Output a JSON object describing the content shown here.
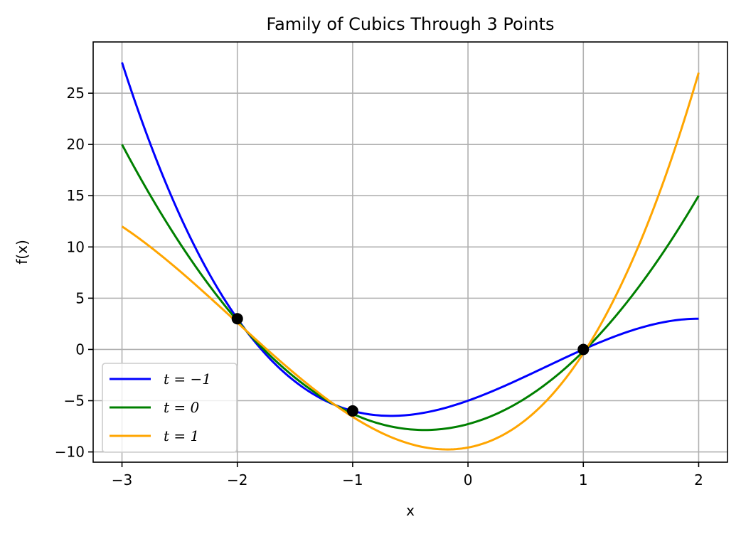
{
  "chart_data": {
    "type": "line",
    "title": "Family of Cubics Through 3 Points",
    "xlabel": "x",
    "ylabel": "f(x)",
    "xlim": [
      -3.25,
      2.25
    ],
    "ylim": [
      -11,
      30
    ],
    "x_ticks": [
      -3,
      -2,
      -1,
      0,
      1,
      2
    ],
    "x_tick_labels": [
      "−3",
      "−2",
      "−1",
      "0",
      "1",
      "2"
    ],
    "y_ticks": [
      -10,
      -5,
      0,
      5,
      10,
      15,
      20,
      25
    ],
    "y_tick_labels": [
      "−10",
      "−5",
      "0",
      "5",
      "10",
      "15",
      "20",
      "25"
    ],
    "grid": true,
    "legend_position": "lower-left",
    "series": [
      {
        "name": "t = −1",
        "color": "#0000ff",
        "x": [
          -3,
          -2.5,
          -2,
          -1.5,
          -1,
          -0.5,
          0,
          0.5,
          1,
          1.5,
          2
        ],
        "y": [
          28,
          13.125,
          3,
          -3.125,
          -6,
          -6.375,
          -5,
          -2.625,
          0,
          2.125,
          3
        ]
      },
      {
        "name": "t = 0",
        "color": "#008000",
        "x": [
          -3,
          -2.5,
          -2,
          -1.5,
          -1,
          -0.5,
          0,
          0.5,
          1,
          1.5,
          2
        ],
        "y": [
          20,
          10.25,
          3,
          -2.75,
          -6,
          -7.25,
          -7,
          -4.75,
          0,
          6.25,
          15
        ]
      },
      {
        "name": "t = 1",
        "color": "#ffa500",
        "x": [
          -3,
          -2.5,
          -2,
          -1.5,
          -1,
          -0.5,
          0,
          0.5,
          1,
          1.5,
          2
        ],
        "y": [
          12,
          7.375,
          3,
          -2.375,
          -6,
          -8.125,
          -9,
          -6.875,
          0,
          10.375,
          27
        ]
      }
    ],
    "points": {
      "color": "#000000",
      "x": [
        -2,
        -1,
        1
      ],
      "y": [
        3,
        -6,
        0
      ]
    }
  }
}
